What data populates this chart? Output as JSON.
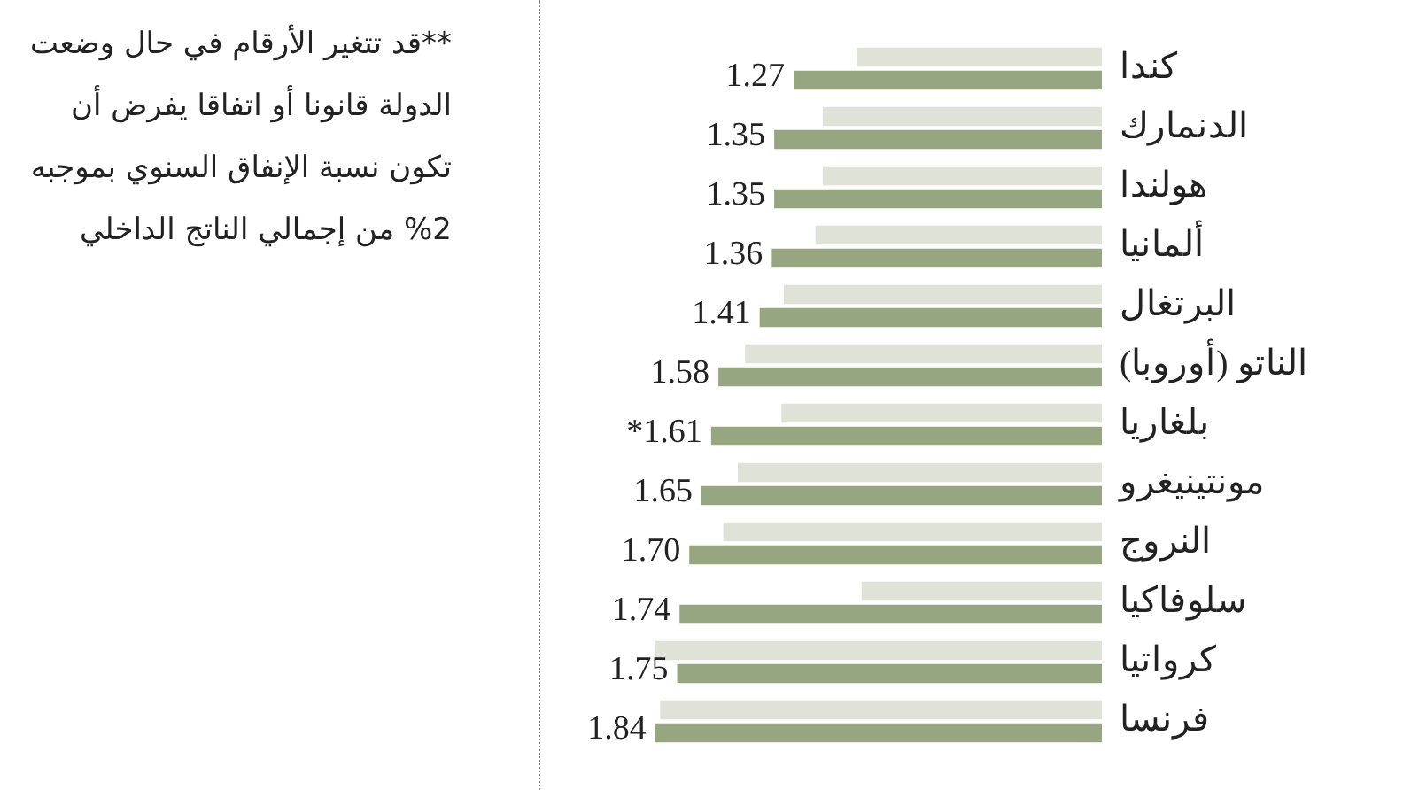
{
  "chart_data": {
    "type": "bar",
    "orientation": "horizontal",
    "categories": [
      "كندا",
      "الدنمارك",
      "هولندا",
      "ألمانيا",
      "البرتغال",
      "الناتو (أوروبا)",
      "بلغاريا",
      "مونتينيغرو",
      "النروج",
      "سلوفاكيا",
      "كرواتيا",
      "فرنسا"
    ],
    "series": [
      {
        "color": "#dfe2d6",
        "values": [
          1.01,
          1.15,
          1.15,
          1.18,
          1.31,
          1.47,
          1.32,
          1.5,
          1.56,
          0.99,
          1.84,
          1.82
        ]
      },
      {
        "color": "#96a680",
        "values": [
          1.27,
          1.35,
          1.35,
          1.36,
          1.41,
          1.58,
          1.61,
          1.65,
          1.7,
          1.74,
          1.75,
          1.84
        ],
        "value_labels": [
          "1.27",
          "1.35",
          "1.35",
          "1.36",
          "1.41",
          "1.58",
          "*1.61",
          "1.65",
          "1.70",
          "1.74",
          "1.75",
          "1.84"
        ]
      }
    ],
    "tick_labels": "y",
    "annotations": [
      "**قد تتغير الأرقام في حال وضعت الدولة قانونا أو اتفاقا يفرض أن تكون نسبة الإنفاق السنوي بموجبه 2% من إجمالي الناتج الداخلي"
    ]
  }
}
